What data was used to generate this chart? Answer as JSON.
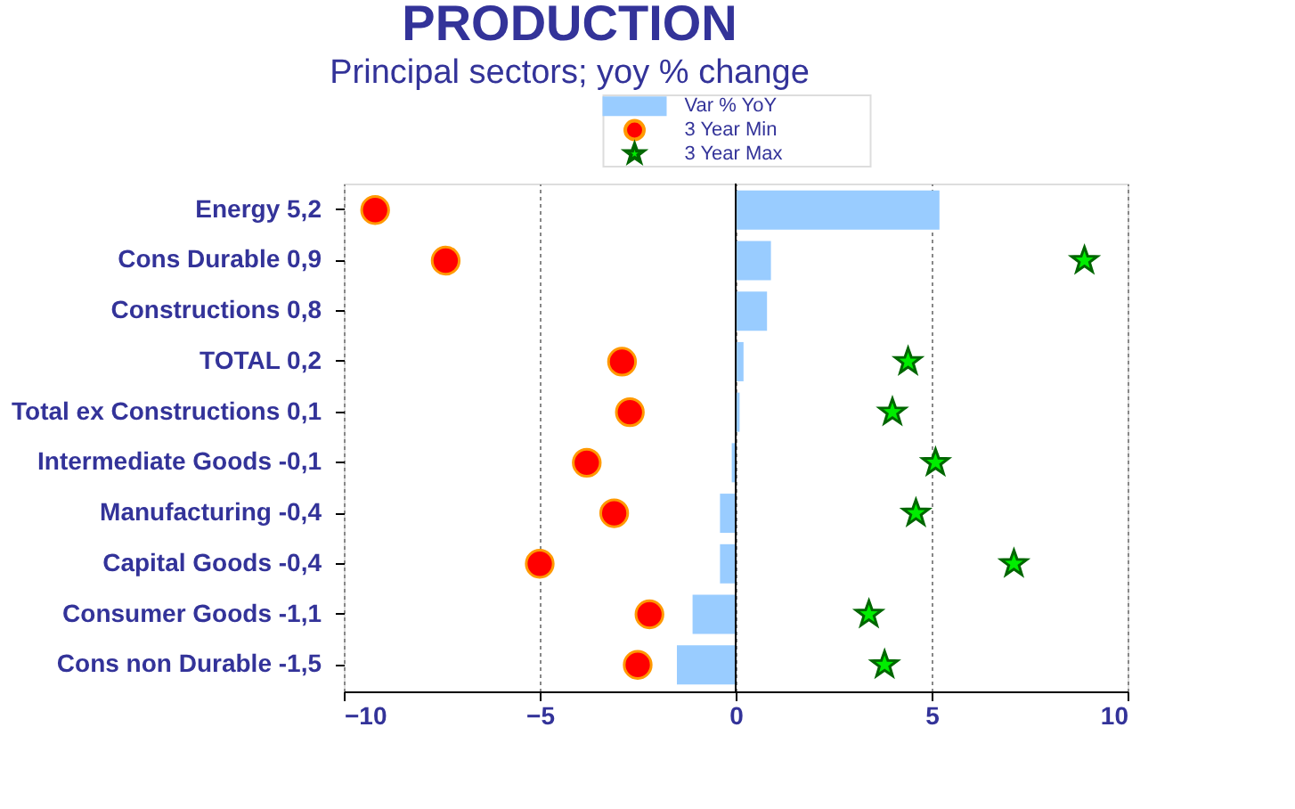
{
  "chart_data": {
    "type": "bar",
    "orientation": "horizontal",
    "title": "PRODUCTION",
    "subtitle": "Principal sectors; yoy % change",
    "categories": [
      "Energy 5,2",
      "Cons Durable 0,9",
      "Constructions  0,8",
      "TOTAL 0,2",
      "Total ex Constructions 0,1",
      "Intermediate Goods  -0,1",
      "Manufacturing -0,4",
      "Capital Goods -0,4",
      "Consumer Goods -1,1",
      "Cons non Durable -1,5"
    ],
    "series": [
      {
        "name": "Var % YoY",
        "type": "bar",
        "color": "#99ccff",
        "values": [
          5.2,
          0.9,
          0.8,
          0.2,
          0.1,
          -0.1,
          -0.4,
          -0.4,
          -1.1,
          -1.5
        ]
      },
      {
        "name": "3 Year Min",
        "type": "scatter",
        "marker": "circle",
        "color": "#ff0000",
        "values": [
          -9.2,
          -7.4,
          null,
          -2.9,
          -2.7,
          -3.8,
          -3.1,
          -5.0,
          -2.2,
          -2.5
        ]
      },
      {
        "name": "3 Year Max",
        "type": "scatter",
        "marker": "star",
        "color": "#00ee00",
        "values": [
          null,
          8.9,
          null,
          4.4,
          4.0,
          5.1,
          4.6,
          7.1,
          3.4,
          3.8
        ]
      }
    ],
    "xlim": [
      -10,
      10
    ],
    "xticks": [
      -10,
      -5,
      0,
      5,
      10
    ],
    "grid": "x",
    "legend": "top"
  }
}
